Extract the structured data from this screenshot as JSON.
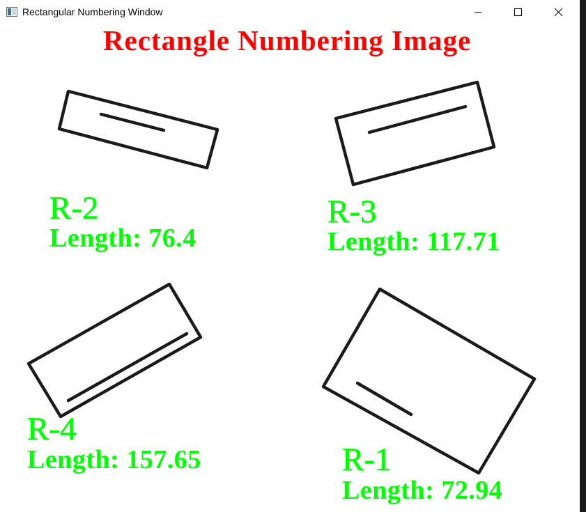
{
  "window": {
    "title": "Rectangular Numbering Window"
  },
  "controls": {
    "minimize": "minimize-icon",
    "maximize": "maximize-icon",
    "close": "close-icon"
  },
  "image": {
    "title": "Rectangle Numbering Image",
    "title_color": "#ff0000",
    "label_color": "#00ff00",
    "rectangles": [
      {
        "id": "R-1",
        "length_text": "Length: 72.94"
      },
      {
        "id": "R-2",
        "length_text": "Length: 76.4"
      },
      {
        "id": "R-3",
        "length_text": "Length: 117.71"
      },
      {
        "id": "R-4",
        "length_text": "Length: 157.65"
      }
    ]
  }
}
